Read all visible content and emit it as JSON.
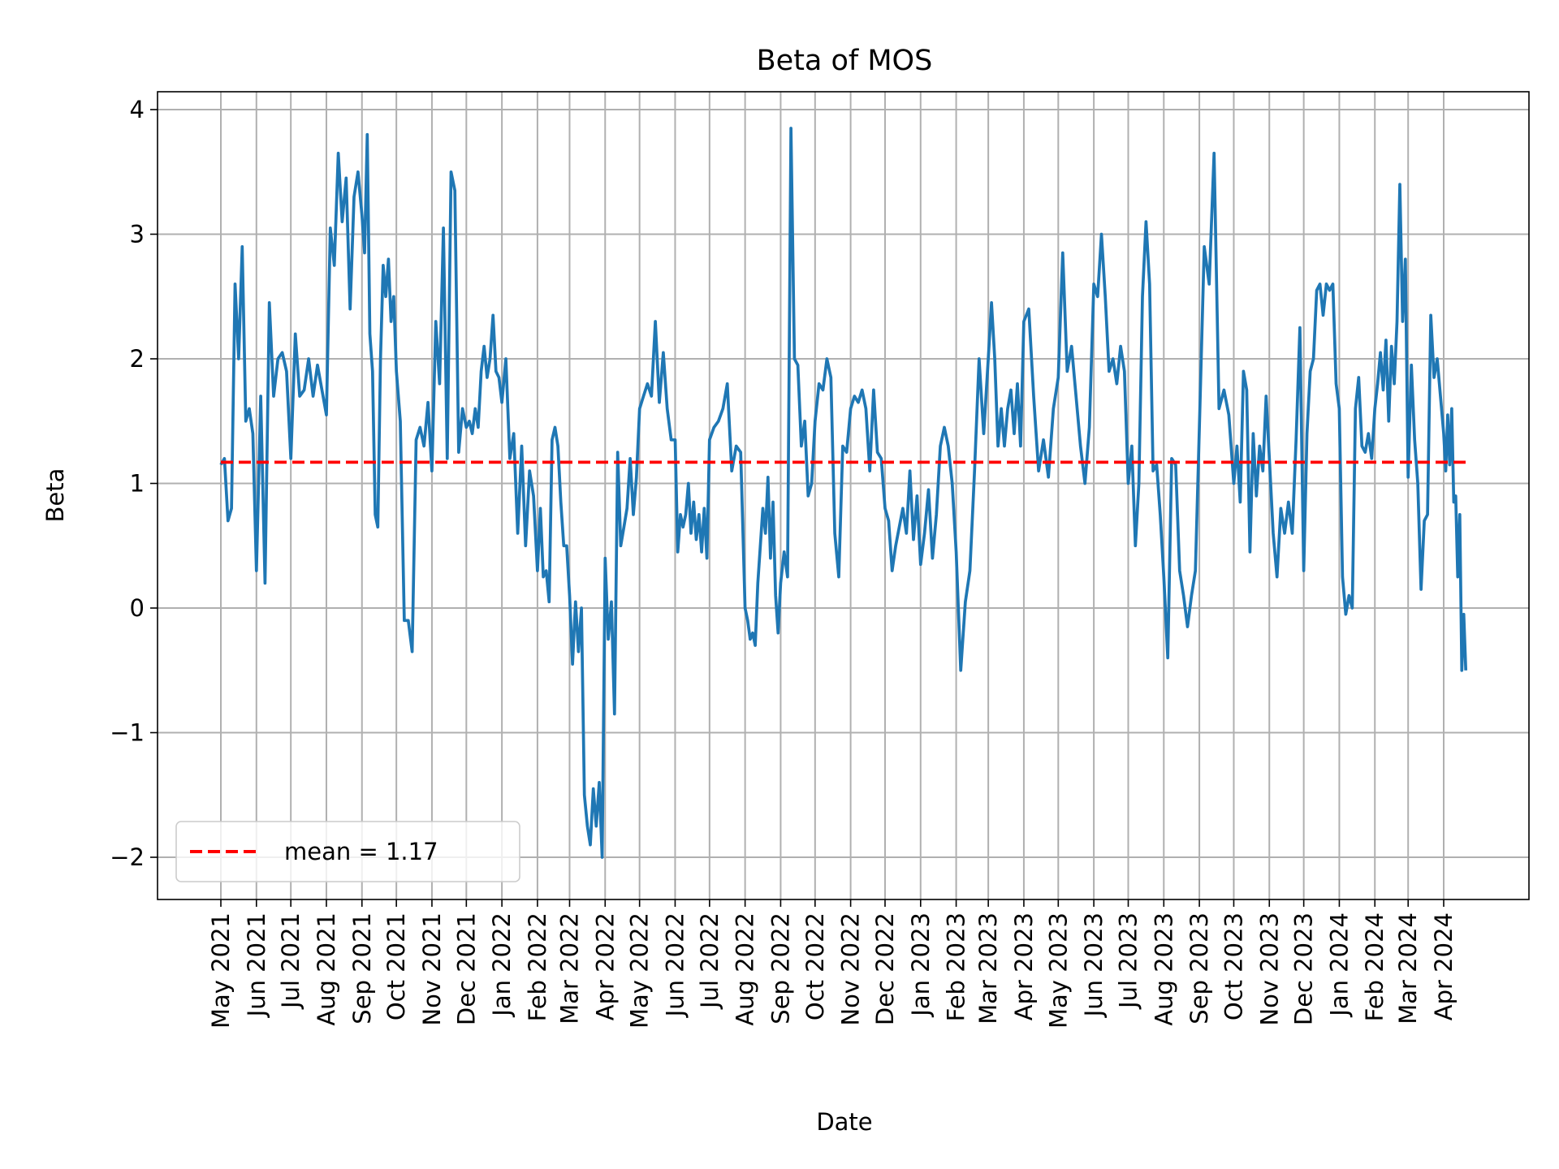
{
  "chart_data": {
    "type": "line",
    "title": "Beta of MOS",
    "xlabel": "Date",
    "ylabel": "Beta",
    "ylim": [
      -2.35,
      4.15
    ],
    "yticks": [
      -2,
      -1,
      0,
      1,
      2,
      3,
      4
    ],
    "ytick_labels": [
      "−2",
      "−1",
      "0",
      "1",
      "2",
      "3",
      "4"
    ],
    "xlim": [
      "2021-03-26",
      "2024-06-15"
    ],
    "grid": true,
    "legend_position": "lower-left",
    "xticks": [
      {
        "date": "2021-05-01",
        "label": "May 2021"
      },
      {
        "date": "2021-06-01",
        "label": "Jun 2021"
      },
      {
        "date": "2021-07-01",
        "label": "Jul 2021"
      },
      {
        "date": "2021-08-01",
        "label": "Aug 2021"
      },
      {
        "date": "2021-09-01",
        "label": "Sep 2021"
      },
      {
        "date": "2021-10-01",
        "label": "Oct 2021"
      },
      {
        "date": "2021-11-01",
        "label": "Nov 2021"
      },
      {
        "date": "2021-12-01",
        "label": "Dec 2021"
      },
      {
        "date": "2022-01-01",
        "label": "Jan 2022"
      },
      {
        "date": "2022-02-01",
        "label": "Feb 2022"
      },
      {
        "date": "2022-03-01",
        "label": "Mar 2022"
      },
      {
        "date": "2022-04-01",
        "label": "Apr 2022"
      },
      {
        "date": "2022-05-01",
        "label": "May 2022"
      },
      {
        "date": "2022-06-01",
        "label": "Jun 2022"
      },
      {
        "date": "2022-07-01",
        "label": "Jul 2022"
      },
      {
        "date": "2022-08-01",
        "label": "Aug 2022"
      },
      {
        "date": "2022-09-01",
        "label": "Sep 2022"
      },
      {
        "date": "2022-10-01",
        "label": "Oct 2022"
      },
      {
        "date": "2022-11-01",
        "label": "Nov 2022"
      },
      {
        "date": "2022-12-01",
        "label": "Dec 2022"
      },
      {
        "date": "2023-01-01",
        "label": "Jan 2023"
      },
      {
        "date": "2023-02-01",
        "label": "Feb 2023"
      },
      {
        "date": "2023-03-01",
        "label": "Mar 2023"
      },
      {
        "date": "2023-04-01",
        "label": "Apr 2023"
      },
      {
        "date": "2023-05-01",
        "label": "May 2023"
      },
      {
        "date": "2023-06-01",
        "label": "Jun 2023"
      },
      {
        "date": "2023-07-01",
        "label": "Jul 2023"
      },
      {
        "date": "2023-08-01",
        "label": "Aug 2023"
      },
      {
        "date": "2023-09-01",
        "label": "Sep 2023"
      },
      {
        "date": "2023-10-01",
        "label": "Oct 2023"
      },
      {
        "date": "2023-11-01",
        "label": "Nov 2023"
      },
      {
        "date": "2023-12-01",
        "label": "Dec 2023"
      },
      {
        "date": "2024-01-01",
        "label": "Jan 2024"
      },
      {
        "date": "2024-02-01",
        "label": "Feb 2024"
      },
      {
        "date": "2024-03-01",
        "label": "Mar 2024"
      },
      {
        "date": "2024-04-01",
        "label": "Apr 2024"
      }
    ],
    "series": [
      {
        "color": "#1f77b4",
        "monthly_values": [
          {
            "month": "2021-05",
            "values": [
              1.15,
              1.2,
              0.7,
              0.8,
              2.6,
              2.0,
              2.9,
              1.5,
              1.6,
              1.4
            ]
          },
          {
            "month": "2021-06",
            "values": [
              0.3,
              1.7,
              0.2,
              2.45,
              1.7,
              2.0,
              2.05,
              1.9
            ]
          },
          {
            "month": "2021-07",
            "values": [
              1.2,
              2.2,
              1.7,
              1.75,
              2.0,
              1.7,
              1.95,
              1.75
            ]
          },
          {
            "month": "2021-08",
            "values": [
              1.55,
              3.05,
              2.75,
              3.65,
              3.1,
              3.45,
              2.4,
              3.3,
              3.5
            ]
          },
          {
            "month": "2021-09",
            "values": [
              3.15,
              2.85,
              3.8,
              2.2,
              1.9,
              0.75,
              0.65,
              2.0,
              2.75,
              2.5,
              2.8,
              2.3,
              2.5
            ]
          },
          {
            "month": "2021-10",
            "values": [
              1.9,
              1.5,
              -0.1,
              -0.1,
              -0.35,
              1.35,
              1.45,
              1.3,
              1.65
            ]
          },
          {
            "month": "2021-11",
            "values": [
              1.1,
              2.3,
              1.8,
              3.05,
              1.2,
              3.5,
              3.35,
              1.25,
              1.6
            ]
          },
          {
            "month": "2021-12",
            "values": [
              1.45,
              1.5,
              1.4,
              1.6,
              1.45,
              1.9,
              2.1,
              1.85,
              2.0,
              2.35,
              1.9,
              1.85
            ]
          },
          {
            "month": "2022-01",
            "values": [
              1.65,
              2.0,
              1.2,
              1.4,
              0.6,
              1.3,
              0.5,
              1.1,
              0.9
            ]
          },
          {
            "month": "2022-02",
            "values": [
              0.3,
              0.8,
              0.25,
              0.3,
              0.05,
              1.35,
              1.45,
              1.3,
              0.85,
              0.5,
              0.5
            ]
          },
          {
            "month": "2022-03",
            "values": [
              0.1,
              -0.45,
              0.05,
              -0.35,
              0.0,
              -1.5,
              -1.75,
              -1.9,
              -1.45,
              -1.75,
              -1.4,
              -2.0
            ]
          },
          {
            "month": "2022-04",
            "values": [
              0.4,
              -0.25,
              0.05,
              -0.85,
              1.25,
              0.5,
              0.65,
              0.8,
              1.2,
              0.75,
              1.05
            ]
          },
          {
            "month": "2022-05",
            "values": [
              1.6,
              1.7,
              1.8,
              1.7,
              2.3,
              1.65,
              2.05,
              1.6,
              1.35
            ]
          },
          {
            "month": "2022-06",
            "values": [
              1.35,
              0.45,
              0.75,
              0.65,
              0.75,
              1.0,
              0.6,
              0.85,
              0.55,
              0.75,
              0.45,
              0.8,
              0.4
            ]
          },
          {
            "month": "2022-07",
            "values": [
              1.35,
              1.45,
              1.5,
              1.6,
              1.8,
              1.1,
              1.3,
              1.25
            ]
          },
          {
            "month": "2022-08",
            "values": [
              0.0,
              -0.1,
              -0.25,
              -0.2,
              -0.3,
              0.2,
              0.5,
              0.8,
              0.6,
              1.05,
              0.4,
              0.85,
              0.1,
              -0.2
            ]
          },
          {
            "month": "2022-09",
            "values": [
              0.2,
              0.45,
              0.25,
              3.85,
              2.0,
              1.95,
              1.3,
              1.5,
              0.9,
              1.0
            ]
          },
          {
            "month": "2022-10",
            "values": [
              1.5,
              1.8,
              1.75,
              2.0,
              1.85,
              0.6,
              0.25,
              1.3,
              1.25
            ]
          },
          {
            "month": "2022-11",
            "values": [
              1.6,
              1.7,
              1.65,
              1.75,
              1.6,
              1.1,
              1.75,
              1.25,
              1.2
            ]
          },
          {
            "month": "2022-12",
            "values": [
              0.8,
              0.7,
              0.3,
              0.5,
              0.65,
              0.8,
              0.6,
              1.1,
              0.55,
              0.9
            ]
          },
          {
            "month": "2023-01",
            "values": [
              0.35,
              0.6,
              0.95,
              0.4,
              0.75,
              1.3,
              1.45,
              1.3,
              1.0
            ]
          },
          {
            "month": "2023-02",
            "values": [
              0.45,
              -0.5,
              0.05,
              0.3,
              1.1,
              2.0,
              1.4
            ]
          },
          {
            "month": "2023-03",
            "values": [
              2.0,
              2.45,
              2.0,
              1.3,
              1.6,
              1.3,
              1.6,
              1.75,
              1.4,
              1.8,
              1.3
            ]
          },
          {
            "month": "2023-04",
            "values": [
              2.3,
              2.4,
              1.7,
              1.1,
              1.35,
              1.05,
              1.6
            ]
          },
          {
            "month": "2023-05",
            "values": [
              1.85,
              2.85,
              1.9,
              2.1,
              1.7,
              1.3,
              1.0,
              1.45
            ]
          },
          {
            "month": "2023-06",
            "values": [
              2.6,
              2.5,
              3.0,
              2.5,
              1.9,
              2.0,
              1.8,
              2.1,
              1.9
            ]
          },
          {
            "month": "2023-07",
            "values": [
              1.0,
              1.3,
              0.5,
              1.0,
              2.5,
              3.1,
              2.6,
              1.1,
              1.15,
              0.75
            ]
          },
          {
            "month": "2023-08",
            "values": [
              0.25,
              -0.4,
              1.2,
              1.15,
              0.3,
              0.1,
              -0.15,
              0.1,
              0.3
            ]
          },
          {
            "month": "2023-09",
            "values": [
              1.45,
              2.9,
              2.6,
              3.65,
              1.6,
              1.75,
              1.55
            ]
          },
          {
            "month": "2023-10",
            "values": [
              1.0,
              1.3,
              0.85,
              1.9,
              1.75,
              0.45,
              1.4,
              0.9,
              1.3,
              1.1,
              1.7
            ]
          },
          {
            "month": "2023-11",
            "values": [
              1.2,
              0.6,
              0.25,
              0.8,
              0.6,
              0.85,
              0.6,
              1.35,
              2.25
            ]
          },
          {
            "month": "2023-12",
            "values": [
              0.3,
              1.4,
              1.9,
              2.0,
              2.55,
              2.6,
              2.35,
              2.6,
              2.55,
              2.6,
              1.8
            ]
          },
          {
            "month": "2024-01",
            "values": [
              1.6,
              0.25,
              -0.05,
              0.1,
              0.0,
              1.6,
              1.85,
              1.3,
              1.25,
              1.4,
              1.2
            ]
          },
          {
            "month": "2024-02",
            "values": [
              1.6,
              1.8,
              2.05,
              1.75,
              2.15,
              1.5,
              2.1,
              1.8,
              2.3,
              3.4,
              2.3,
              2.8
            ]
          },
          {
            "month": "2024-03",
            "values": [
              1.05,
              1.95,
              1.35,
              1.0,
              0.15,
              0.7,
              0.75,
              2.35,
              1.85,
              2.0,
              1.7
            ]
          },
          {
            "month": "2024-04",
            "values": [
              1.4,
              1.1,
              1.55,
              1.15,
              1.6,
              0.85,
              0.9,
              0.25,
              0.75,
              -0.5,
              -0.05,
              -0.5
            ]
          }
        ]
      },
      {
        "name": "mean = 1.17",
        "type": "hline",
        "value": 1.17,
        "color": "#ff0000",
        "style": "dashed"
      }
    ],
    "legend": [
      {
        "label": "mean = 1.17",
        "color": "#ff0000",
        "style": "dashed"
      }
    ]
  }
}
